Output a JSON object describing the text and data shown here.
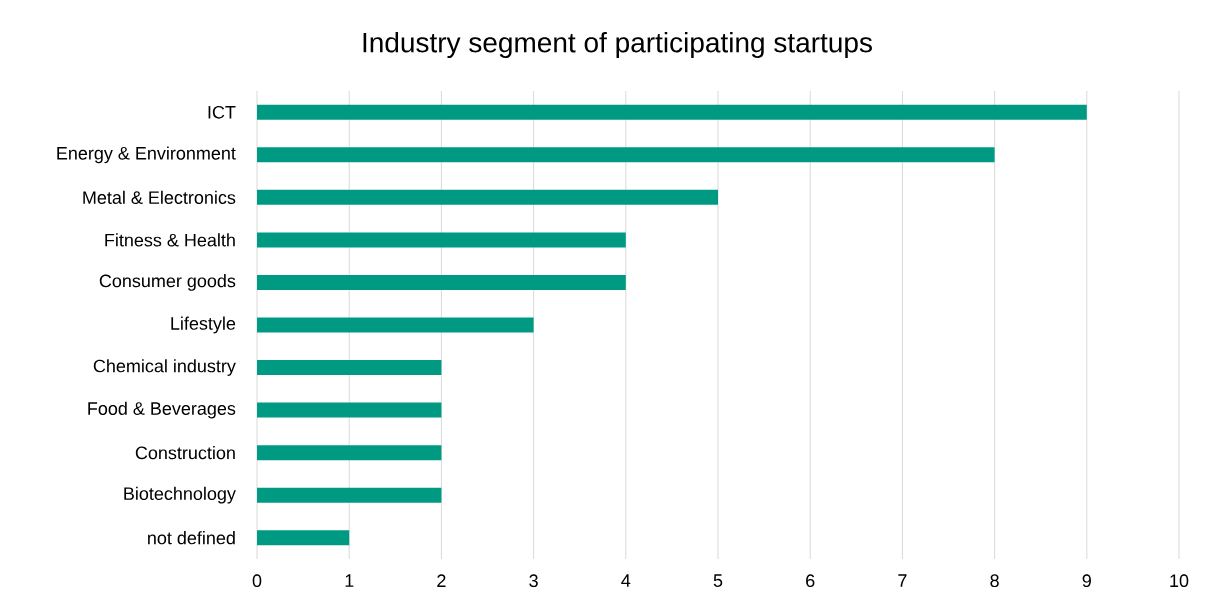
{
  "chart_data": {
    "type": "bar",
    "orientation": "horizontal",
    "title": "Industry segment of participating startups",
    "categories": [
      "ICT",
      "Energy & Environment",
      "Metal & Electronics",
      "Fitness & Health",
      "Consumer goods",
      "Lifestyle",
      "Chemical industry",
      "Food & Beverages",
      "Construction",
      "Biotechnology",
      "not defined"
    ],
    "values": [
      9,
      8,
      5,
      4,
      4,
      3,
      2,
      2,
      2,
      2,
      1
    ],
    "color": "#009a82",
    "xlim": [
      0,
      10
    ],
    "xticks": [
      0,
      1,
      2,
      3,
      4,
      5,
      6,
      7,
      8,
      9,
      10
    ],
    "grid": "x"
  }
}
